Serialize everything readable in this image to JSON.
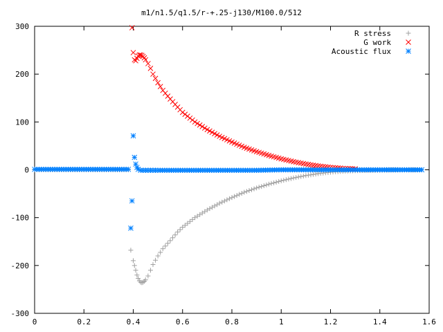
{
  "chart_data": {
    "type": "scatter",
    "title": "m1/n1.5/q1.5/r-+.25-j130/M100.0/512",
    "xlabel": "",
    "ylabel": "",
    "xlim": [
      0,
      1.6
    ],
    "ylim": [
      -300,
      300
    ],
    "x_ticks": [
      "0",
      "0.2",
      "0.4",
      "0.6",
      "0.8",
      "1",
      "1.2",
      "1.4",
      "1.6"
    ],
    "y_ticks": [
      "300",
      "200",
      "100",
      "0",
      "-100",
      "-200",
      "-300"
    ],
    "legend_position": "top-right",
    "grid": false,
    "series": [
      {
        "name": "R stress",
        "marker": "plus",
        "color": "#a0a0a0",
        "x": [
          0.0,
          0.1,
          0.2,
          0.3,
          0.38,
          0.39,
          0.4,
          0.405,
          0.41,
          0.415,
          0.42,
          0.425,
          0.43,
          0.435,
          0.44,
          0.445,
          0.45,
          0.46,
          0.47,
          0.48,
          0.5,
          0.52,
          0.55,
          0.58,
          0.6,
          0.65,
          0.7,
          0.75,
          0.8,
          0.85,
          0.9,
          0.95,
          1.0,
          1.05,
          1.1,
          1.15,
          1.2,
          1.25,
          1.3,
          1.35,
          1.4,
          1.45,
          1.5,
          1.55,
          1.57
        ],
        "y": [
          0,
          0,
          0,
          0,
          0,
          -168,
          -190,
          -200,
          -210,
          -220,
          -227,
          -232,
          -235,
          -236,
          -235,
          -233,
          -230,
          -222,
          -210,
          -198,
          -180,
          -165,
          -148,
          -130,
          -120,
          -100,
          -84,
          -70,
          -58,
          -47,
          -38,
          -30,
          -23,
          -17,
          -12,
          -8,
          -5,
          -3,
          -2,
          -1,
          -1,
          0,
          0,
          0,
          0
        ]
      },
      {
        "name": "G work",
        "marker": "cross",
        "color": "#ff0000",
        "x": [
          0.395,
          0.4,
          0.405,
          0.41,
          0.415,
          0.42,
          0.425,
          0.43,
          0.435,
          0.44,
          0.445,
          0.45,
          0.46,
          0.47,
          0.48,
          0.5,
          0.52,
          0.55,
          0.58,
          0.6,
          0.65,
          0.7,
          0.75,
          0.8,
          0.85,
          0.9,
          0.95,
          1.0,
          1.05,
          1.1,
          1.15,
          1.2,
          1.25,
          1.3
        ],
        "y": [
          297,
          245,
          230,
          228,
          233,
          238,
          240,
          240,
          239,
          237,
          234,
          230,
          222,
          212,
          200,
          182,
          166,
          148,
          131,
          120,
          100,
          84,
          70,
          58,
          47,
          38,
          30,
          23,
          17,
          12,
          8,
          5,
          3,
          2
        ]
      },
      {
        "name": "Acoustic flux",
        "marker": "star",
        "color": "#0080ff",
        "x": [
          0.0,
          0.1,
          0.2,
          0.3,
          0.38,
          0.39,
          0.395,
          0.4,
          0.405,
          0.41,
          0.415,
          0.42,
          0.43,
          0.45,
          0.5,
          0.6,
          0.7,
          0.8,
          0.9,
          1.0,
          1.1,
          1.2,
          1.3,
          1.4,
          1.5,
          1.57
        ],
        "y": [
          1,
          1,
          1,
          1,
          1,
          -122,
          -65,
          71,
          26,
          12,
          5,
          1,
          -1,
          -1,
          -1,
          -1,
          -1,
          -1,
          -1,
          0,
          0,
          0,
          0,
          0,
          0,
          0
        ]
      }
    ]
  }
}
